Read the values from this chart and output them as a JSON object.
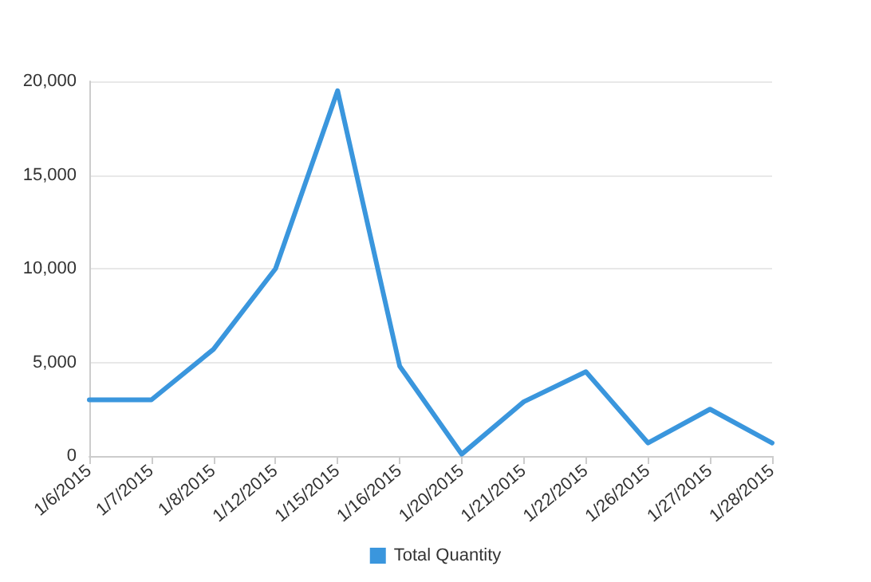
{
  "chart_data": {
    "type": "line",
    "categories": [
      "1/6/2015",
      "1/7/2015",
      "1/8/2015",
      "1/12/2015",
      "1/15/2015",
      "1/16/2015",
      "1/20/2015",
      "1/21/2015",
      "1/22/2015",
      "1/26/2015",
      "1/27/2015",
      "1/28/2015"
    ],
    "series": [
      {
        "name": "Total Quantity",
        "color": "#3a96dd",
        "values": [
          3000,
          3000,
          5700,
          10000,
          19500,
          4800,
          100,
          2900,
          4500,
          700,
          2500,
          700
        ]
      }
    ],
    "ylim": [
      0,
      20000
    ],
    "yticks": [
      {
        "value": 0,
        "label": "0"
      },
      {
        "value": 5000,
        "label": "5,000"
      },
      {
        "value": 10000,
        "label": "10,000"
      },
      {
        "value": 15000,
        "label": "15,000"
      },
      {
        "value": 20000,
        "label": "20,000"
      }
    ],
    "grid": "y",
    "legend": "bottom",
    "marker": "none",
    "line_style": "solid"
  }
}
